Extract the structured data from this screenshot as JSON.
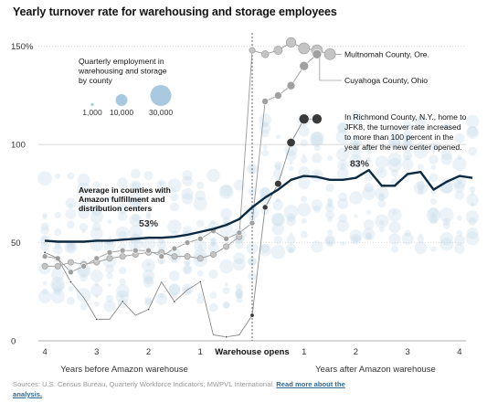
{
  "title": "Yearly turnover rate for warehousing and storage employees",
  "source": {
    "text": "Sources: U.S. Census Bureau, Quarterly Workforce Indicators; MWPVL International.",
    "link": "Read more about the analysis."
  },
  "legend": {
    "title_lines": [
      "Quarterly employment in",
      "warehousing and storage",
      "by county"
    ],
    "sizes": [
      "1,000",
      "10,000",
      "30,000"
    ]
  },
  "colors": {
    "average_line": "#0b2a40",
    "background_dots": "#c9dcea",
    "legend_dots": "#a9c9e1",
    "county_line": "#8c8c8c",
    "richmond_dots": "#3a3a3a"
  },
  "chart_data": {
    "type": "line",
    "title": "Yearly turnover rate for warehousing and storage employees",
    "x_unit": "quarters relative to warehouse opening",
    "xlim": [
      -16.5,
      16.5
    ],
    "ylim": [
      0,
      155
    ],
    "y_ticks": [
      {
        "value": 0,
        "label": "0"
      },
      {
        "value": 50,
        "label": "50"
      },
      {
        "value": 100,
        "label": "100"
      },
      {
        "value": 150,
        "label": "150%"
      }
    ],
    "x_ticks": [
      {
        "value": -16,
        "label": "4"
      },
      {
        "value": -12,
        "label": "3"
      },
      {
        "value": -8,
        "label": "2"
      },
      {
        "value": -4,
        "label": "1"
      },
      {
        "value": 4,
        "label": "1"
      },
      {
        "value": 8,
        "label": "2"
      },
      {
        "value": 12,
        "label": "3"
      },
      {
        "value": 16,
        "label": "4"
      }
    ],
    "x_group_labels": {
      "before": "Years before Amazon warehouse",
      "opens": "Warehouse opens",
      "after": "Years after Amazon warehouse"
    },
    "series": [
      {
        "name": "Average in counties with Amazon fulfillment and distribution centers",
        "label_lines": [
          "Average in counties with",
          "Amazon fulfillment and",
          "distribution centers"
        ],
        "x": [
          -16,
          -15,
          -14,
          -13,
          -12,
          -11,
          -10,
          -9,
          -8,
          -7,
          -6,
          -5,
          -4,
          -3,
          -2,
          -1,
          0,
          1,
          2,
          3,
          4,
          5,
          6,
          7,
          8,
          9,
          10,
          11,
          12,
          13,
          14,
          15,
          16,
          17
        ],
        "values": [
          51,
          50.5,
          50.5,
          50.5,
          51,
          51,
          51.5,
          52,
          52.5,
          52.5,
          53,
          54,
          55.5,
          57,
          59,
          62,
          68,
          73,
          77,
          82,
          84,
          83.5,
          82,
          82,
          83,
          87,
          79,
          79,
          85,
          86,
          77,
          81,
          84,
          83
        ],
        "annotations": [
          {
            "x": -8,
            "text": "53%"
          },
          {
            "x": 8,
            "text": "83%"
          }
        ]
      },
      {
        "name": "Multnomah County, Ore.",
        "x": [
          -16,
          -15,
          -14,
          -13,
          -12,
          -11,
          -10,
          -9,
          -8,
          -7,
          -6,
          -5,
          -4,
          -3,
          -2,
          -1,
          0,
          1,
          2,
          3,
          4,
          5,
          6
        ],
        "values": [
          38,
          38,
          40,
          39,
          40,
          42,
          43,
          44,
          45,
          45,
          43,
          43,
          42,
          44,
          48,
          53,
          148,
          146,
          148,
          152,
          149,
          148,
          146
        ]
      },
      {
        "name": "Cuyahoga County, Ohio",
        "x": [
          -16,
          -15,
          -14,
          -13,
          -12,
          -11,
          -10,
          -9,
          -8,
          -7,
          -6,
          -5,
          -4,
          -3,
          -2,
          -1,
          0,
          1,
          2,
          3,
          4,
          5
        ],
        "values": [
          43,
          42,
          35,
          38,
          42,
          45,
          46,
          46,
          46,
          43,
          47,
          50,
          52,
          56,
          52,
          55,
          60,
          122,
          125,
          130,
          140,
          146
        ]
      },
      {
        "name": "Richmond County, N.Y.",
        "label_lines": [
          "In Richmond County, N.Y., home to",
          "JFK8, the turnover rate increased",
          "to more than 100 percent in the",
          "year after the new center opened."
        ],
        "x": [
          -16,
          -15,
          -14,
          -13,
          -12,
          -11,
          -10,
          -9,
          -8,
          -7,
          -6,
          -5,
          -4,
          -3,
          -2,
          -1,
          0,
          1,
          2,
          3,
          4,
          5
        ],
        "values": [
          45,
          42,
          30,
          22,
          11,
          11,
          20,
          13,
          16,
          30,
          20,
          26,
          30,
          3,
          2,
          3,
          13,
          68,
          80,
          101,
          113,
          113
        ]
      }
    ],
    "series_labels": [
      {
        "series": "Multnomah County, Ore.",
        "text": "Multnomah County, Ore."
      },
      {
        "series": "Cuyahoga County, Ohio",
        "text": "Cuyahoga County, Ohio"
      }
    ]
  }
}
